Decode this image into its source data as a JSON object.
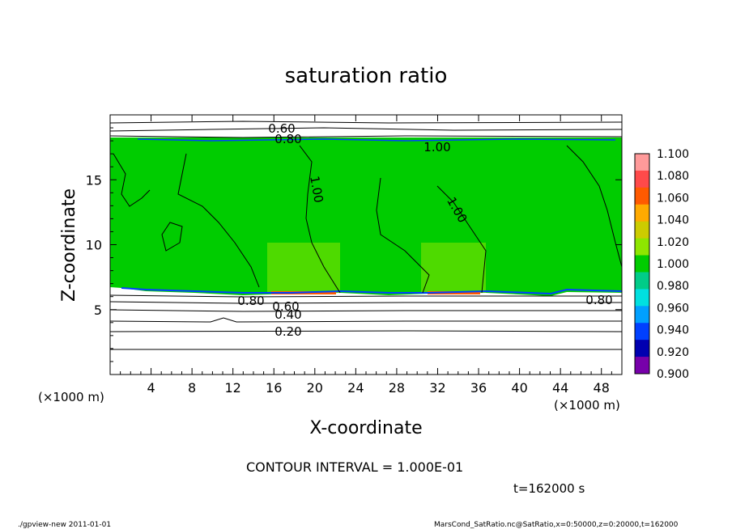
{
  "chart_data": {
    "type": "heatmap",
    "title": "saturation ratio",
    "xlabel": "X-coordinate",
    "ylabel": "Z-coordinate",
    "x_unit_label": "(×1000 m)",
    "x_unit_label_right": "(×1000 m)",
    "xlim": [
      0,
      50
    ],
    "ylim": [
      0,
      20
    ],
    "x_ticks": [
      4,
      8,
      12,
      16,
      20,
      24,
      28,
      32,
      36,
      40,
      44,
      48
    ],
    "y_ticks": [
      5,
      10,
      15
    ],
    "colorbar": {
      "levels": [
        "1.100",
        "1.080",
        "1.060",
        "1.040",
        "1.020",
        "1.000",
        "0.980",
        "0.960",
        "0.940",
        "0.920",
        "0.900"
      ],
      "colors": [
        "#ff9a9a",
        "#ff4a4a",
        "#ff5a00",
        "#ffaa00",
        "#cccc00",
        "#8ee600",
        "#00cc00",
        "#00cc88",
        "#00e0e0",
        "#00a0ff",
        "#0040ff",
        "#0000b0",
        "#7700aa"
      ]
    },
    "contour_labels": [
      "0.60",
      "0.80",
      "1.00",
      "1.00",
      "1.00",
      "0.80",
      "0.60",
      "0.40",
      "0.20",
      "0.80"
    ],
    "contour_interval": "CONTOUR INTERVAL = 1.000E-01",
    "time_label": "t=162000 s"
  },
  "footer": {
    "left": "./gpview-new  2011-01-01",
    "right": "MarsCond_SatRatio.nc@SatRatio,x=0:50000,z=0:20000,t=162000"
  }
}
